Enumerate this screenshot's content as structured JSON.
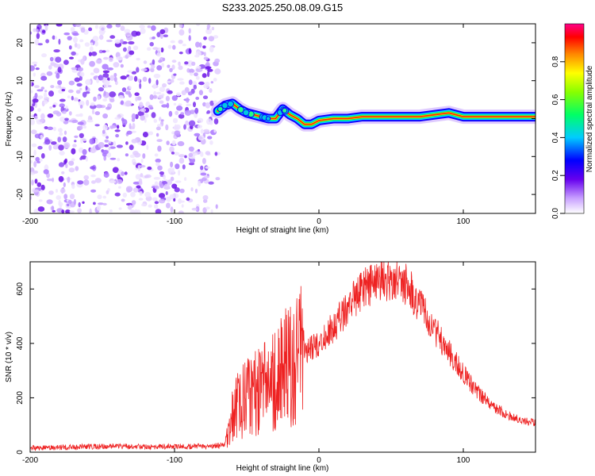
{
  "title": "S233.2025.250.08.09.G15",
  "chart_data": [
    {
      "type": "heatmap",
      "name": "spectrogram",
      "xlabel": "Height of straight line (km)",
      "ylabel": "Frequency (Hz)",
      "xlim": [
        -200,
        150
      ],
      "ylim": [
        -25,
        25
      ],
      "x_ticks": [
        -200,
        -100,
        0,
        100
      ],
      "y_ticks": [
        -20,
        -10,
        0,
        10,
        20
      ],
      "noise_region_x": [
        -200,
        -70
      ],
      "ridge": {
        "x": [
          -70,
          -65,
          -60,
          -55,
          -50,
          -45,
          -40,
          -35,
          -30,
          -25,
          -20,
          -15,
          -10,
          -5,
          0,
          10,
          20,
          30,
          40,
          50,
          60,
          70,
          80,
          90,
          100,
          110,
          120,
          130,
          140,
          150
        ],
        "y": [
          2,
          3.5,
          4,
          2.5,
          1.5,
          1,
          0.5,
          0,
          0,
          2.5,
          1,
          0,
          -1.5,
          -1.5,
          -0.5,
          0,
          0,
          0.5,
          0.5,
          0.5,
          0.5,
          0.5,
          1,
          1.5,
          0.5,
          0.5,
          0.5,
          0.5,
          0.5,
          0.5
        ]
      },
      "colorbar": {
        "label": "Normalized spectral amplitude",
        "range": [
          0,
          1
        ],
        "ticks": [
          "0.0",
          "0.2",
          "0.4",
          "0.6",
          "0.8"
        ]
      }
    },
    {
      "type": "line",
      "name": "snr",
      "xlabel": "Height of straight line (km)",
      "ylabel": "SNR (10 * v/v)",
      "xlim": [
        -200,
        150
      ],
      "ylim": [
        0,
        700
      ],
      "x_ticks": [
        -200,
        -100,
        0,
        100
      ],
      "y_ticks": [
        0,
        200,
        400,
        600
      ],
      "color": "#ee2222",
      "series": [
        {
          "name": "SNR",
          "x": [
            -200,
            -180,
            -160,
            -140,
            -120,
            -100,
            -80,
            -65,
            -60,
            -55,
            -50,
            -45,
            -40,
            -35,
            -30,
            -25,
            -20,
            -15,
            -10,
            -5,
            0,
            10,
            20,
            30,
            40,
            50,
            60,
            70,
            80,
            90,
            100,
            110,
            120,
            130,
            140,
            150
          ],
          "y": [
            15,
            18,
            20,
            22,
            20,
            21,
            22,
            25,
            130,
            180,
            200,
            210,
            230,
            240,
            260,
            300,
            330,
            340,
            360,
            380,
            400,
            460,
            530,
            600,
            630,
            640,
            620,
            540,
            450,
            370,
            290,
            220,
            170,
            140,
            115,
            110
          ]
        }
      ]
    }
  ]
}
